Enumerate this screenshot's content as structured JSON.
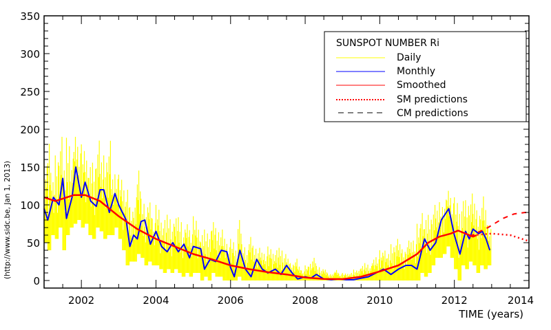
{
  "chart_data": {
    "type": "line",
    "xlabel": "TIME (years)",
    "side_note": "(http://www.sidc.be, Jan  1, 2013)",
    "xlim": [
      2001,
      2014
    ],
    "ylim": [
      -10,
      350
    ],
    "x_ticks": [
      "2002",
      "2004",
      "2006",
      "2008",
      "2010",
      "2012",
      "2014"
    ],
    "y_ticks": [
      "0",
      "50",
      "100",
      "150",
      "200",
      "250",
      "300",
      "350"
    ],
    "grid": false,
    "legend": {
      "placement": "top-right",
      "title": "SUNSPOT NUMBER Ri",
      "entries": [
        "Daily",
        "Monthly",
        "Smoothed",
        "SM predictions",
        "CM predictions"
      ]
    },
    "colors": {
      "daily": "#ffff00",
      "monthly": "#0000ff",
      "smoothed": "#ff0000",
      "sm_predictions": "#ff0000",
      "cm_predictions": "#ff0000"
    },
    "daily": {
      "start": 2001.0,
      "step": 0.1,
      "high": [
        160,
        200,
        130,
        170,
        190,
        150,
        200,
        165,
        200,
        190,
        180,
        170,
        150,
        160,
        185,
        160,
        175,
        190,
        140,
        150,
        140,
        130,
        120,
        100,
        110,
        150,
        115,
        100,
        110,
        90,
        100,
        85,
        80,
        90,
        75,
        85,
        90,
        70,
        80,
        75,
        85,
        75,
        60,
        70,
        65,
        80,
        75,
        70,
        60,
        55,
        55,
        45,
        80,
        50,
        40,
        60,
        50,
        45,
        40,
        40,
        45,
        40,
        40,
        45,
        35,
        30,
        25,
        30,
        20,
        15,
        20,
        25,
        30,
        20,
        15,
        15,
        10,
        10,
        15,
        10,
        10,
        10,
        10,
        15,
        15,
        20,
        25,
        20,
        30,
        35,
        40,
        45,
        35,
        50,
        55,
        50,
        45,
        55,
        55,
        60,
        75,
        100,
        80,
        90,
        100,
        95,
        110,
        110,
        125,
        120,
        110,
        100,
        105,
        110,
        115,
        105,
        100,
        115,
        100,
        80
      ],
      "low": [
        50,
        40,
        60,
        55,
        70,
        40,
        60,
        70,
        75,
        80,
        70,
        75,
        60,
        55,
        70,
        65,
        55,
        60,
        60,
        70,
        55,
        40,
        20,
        25,
        25,
        35,
        30,
        20,
        25,
        20,
        20,
        15,
        10,
        15,
        10,
        15,
        10,
        5,
        10,
        5,
        10,
        10,
        0,
        5,
        0,
        10,
        5,
        5,
        0,
        0,
        0,
        0,
        5,
        0,
        0,
        0,
        0,
        0,
        0,
        0,
        0,
        0,
        0,
        0,
        0,
        0,
        0,
        0,
        0,
        0,
        0,
        0,
        0,
        0,
        0,
        0,
        0,
        0,
        0,
        0,
        0,
        0,
        0,
        0,
        0,
        0,
        0,
        0,
        0,
        0,
        0,
        0,
        0,
        0,
        0,
        0,
        0,
        0,
        0,
        0,
        0,
        10,
        5,
        10,
        20,
        30,
        30,
        35,
        45,
        30,
        15,
        0,
        20,
        15,
        25,
        20,
        10,
        20,
        15,
        20
      ]
    },
    "monthly": {
      "x": [
        2001.0,
        2001.1,
        2001.25,
        2001.4,
        2001.5,
        2001.6,
        2001.75,
        2001.85,
        2002.0,
        2002.1,
        2002.25,
        2002.4,
        2002.5,
        2002.6,
        2002.75,
        2002.9,
        2003.0,
        2003.2,
        2003.3,
        2003.4,
        2003.5,
        2003.6,
        2003.7,
        2003.85,
        2004.0,
        2004.15,
        2004.3,
        2004.45,
        2004.6,
        2004.75,
        2004.9,
        2005.0,
        2005.2,
        2005.3,
        2005.45,
        2005.6,
        2005.75,
        2005.9,
        2006.0,
        2006.1,
        2006.25,
        2006.4,
        2006.55,
        2006.7,
        2006.85,
        2007.0,
        2007.2,
        2007.35,
        2007.5,
        2007.65,
        2007.8,
        2008.0,
        2008.15,
        2008.3,
        2008.5,
        2008.7,
        2008.9,
        2009.1,
        2009.3,
        2009.5,
        2009.7,
        2009.9,
        2010.1,
        2010.3,
        2010.5,
        2010.7,
        2010.85,
        2011.0,
        2011.2,
        2011.35,
        2011.5,
        2011.65,
        2011.85,
        2012.0,
        2012.15,
        2012.3,
        2012.4,
        2012.5,
        2012.65,
        2012.75,
        2012.85,
        2012.95
      ],
      "y": [
        95,
        80,
        110,
        100,
        135,
        82,
        110,
        150,
        110,
        130,
        105,
        98,
        120,
        120,
        90,
        115,
        100,
        80,
        45,
        60,
        55,
        78,
        80,
        48,
        65,
        45,
        38,
        50,
        38,
        48,
        30,
        45,
        42,
        15,
        28,
        25,
        40,
        38,
        17,
        5,
        40,
        15,
        5,
        28,
        15,
        10,
        15,
        8,
        20,
        10,
        2,
        5,
        3,
        8,
        2,
        1,
        2,
        1,
        1,
        3,
        5,
        10,
        15,
        8,
        15,
        20,
        20,
        15,
        55,
        40,
        50,
        80,
        95,
        60,
        35,
        65,
        55,
        68,
        62,
        65,
        55,
        40
      ]
    },
    "smoothed": {
      "x": [
        2001.0,
        2001.3,
        2001.8,
        2002.1,
        2002.5,
        2003.0,
        2003.5,
        2004.0,
        2004.5,
        2005.0,
        2005.5,
        2006.0,
        2006.5,
        2007.0,
        2007.5,
        2008.0,
        2008.5,
        2009.0,
        2009.5,
        2010.0,
        2010.5,
        2011.0,
        2011.3,
        2011.6,
        2011.9,
        2012.1,
        2012.3,
        2012.5,
        2012.6
      ],
      "y": [
        110,
        105,
        113,
        113,
        105,
        85,
        68,
        55,
        45,
        35,
        28,
        20,
        15,
        11,
        8,
        4,
        2,
        1.8,
        5,
        12,
        20,
        35,
        50,
        58,
        62,
        66,
        62,
        58,
        60
      ]
    },
    "sm_predictions": {
      "x": [
        2012.5,
        2013.0,
        2013.5,
        2014.0
      ],
      "y": [
        60,
        62,
        60,
        52
      ]
    },
    "cm_predictions": {
      "x": [
        2012.4,
        2012.9,
        2013.3,
        2013.6,
        2013.9,
        2014.0
      ],
      "y": [
        58,
        70,
        82,
        88,
        90,
        89
      ]
    }
  }
}
